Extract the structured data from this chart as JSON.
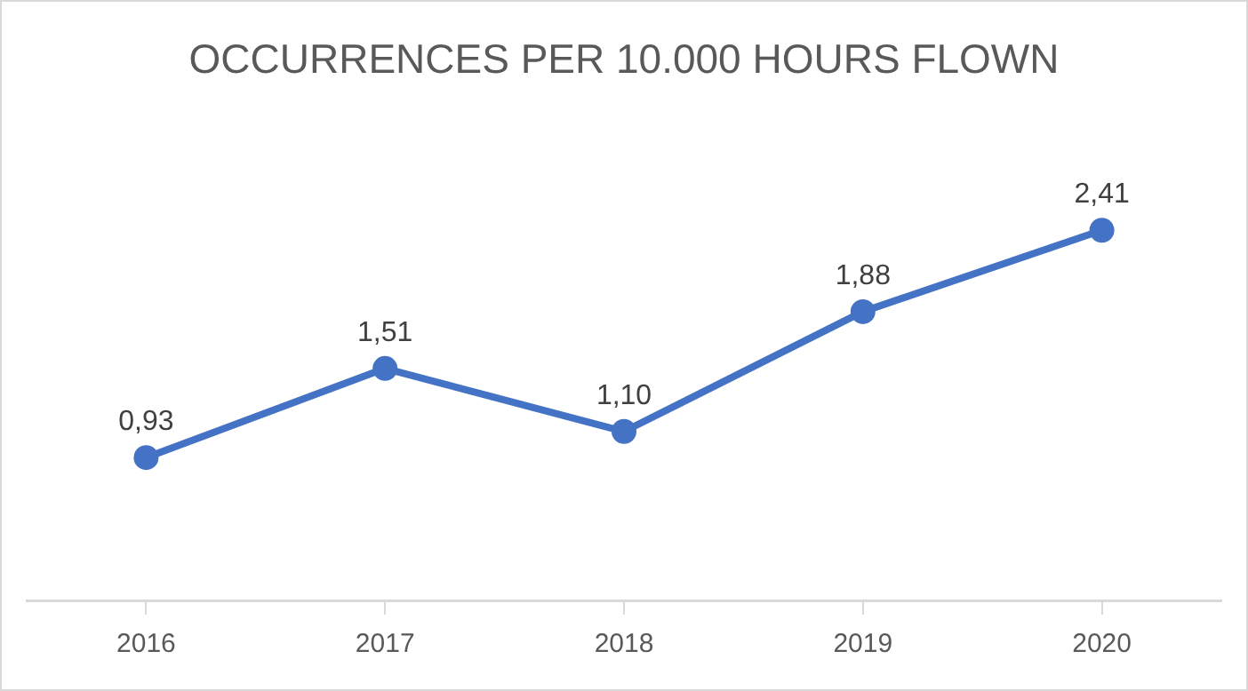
{
  "chart_data": {
    "type": "line",
    "title": "OCCURRENCES PER 10.000 HOURS FLOWN",
    "categories": [
      "2016",
      "2017",
      "2018",
      "2019",
      "2020"
    ],
    "values": [
      0.93,
      1.51,
      1.1,
      1.88,
      2.41
    ],
    "value_labels": [
      "0,93",
      "1,51",
      "1,10",
      "1,88",
      "2,41"
    ],
    "color": "#4472c4",
    "marker": "circle",
    "line_style": "solid",
    "grid": false,
    "legend": false,
    "tick_labels": "x"
  }
}
